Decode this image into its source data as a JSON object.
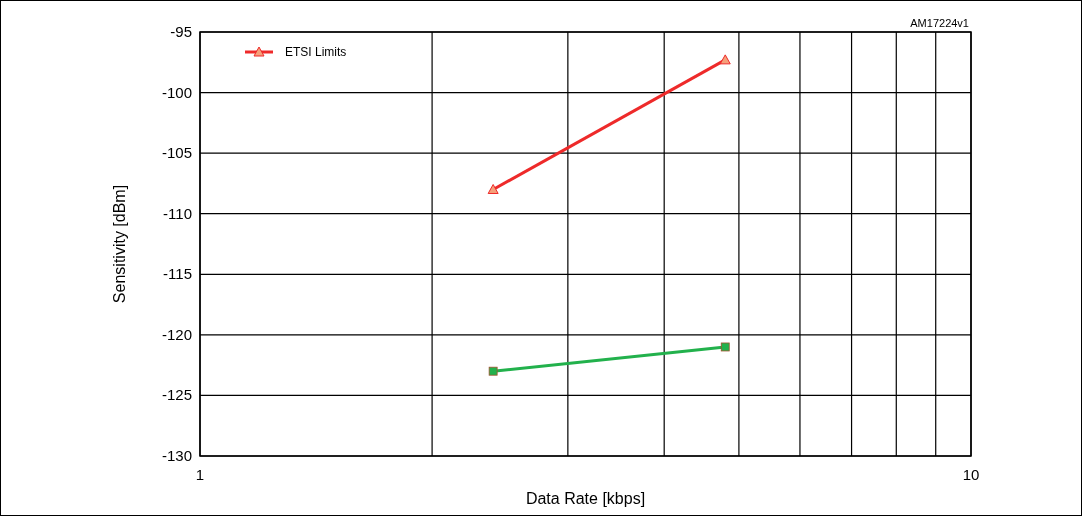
{
  "chart_data": {
    "type": "line",
    "xlabel": "Data Rate [kbps]",
    "ylabel": "Sensitivity [dBm]",
    "log": "x",
    "xlim": [
      1,
      10
    ],
    "xticks": [
      1,
      {
        "value": 2,
        "label": null
      },
      {
        "value": 3,
        "label": null
      },
      {
        "value": 4,
        "label": null
      },
      {
        "value": 5,
        "label": null
      },
      {
        "value": 6,
        "label": null
      },
      {
        "value": 7,
        "label": null
      },
      {
        "value": 8,
        "label": null
      },
      {
        "value": 9,
        "label": null
      },
      10
    ],
    "ylim": [
      -130,
      -95
    ],
    "yticks": [
      -130,
      -125,
      -120,
      -115,
      -110,
      -105,
      -100,
      -95
    ],
    "grid": true,
    "legend": "top left",
    "line_style": "solid",
    "annotations": [
      "AM17224v1"
    ],
    "x": [
      2.4,
      4.8
    ],
    "series": [
      {
        "color": "#22b14c",
        "marker": "square",
        "values": [
          -123,
          -121
        ]
      },
      {
        "name": "ETSI Limits",
        "color": "#ee2a2a",
        "marker": "triangle",
        "values": [
          -108,
          -97.3
        ]
      }
    ]
  }
}
